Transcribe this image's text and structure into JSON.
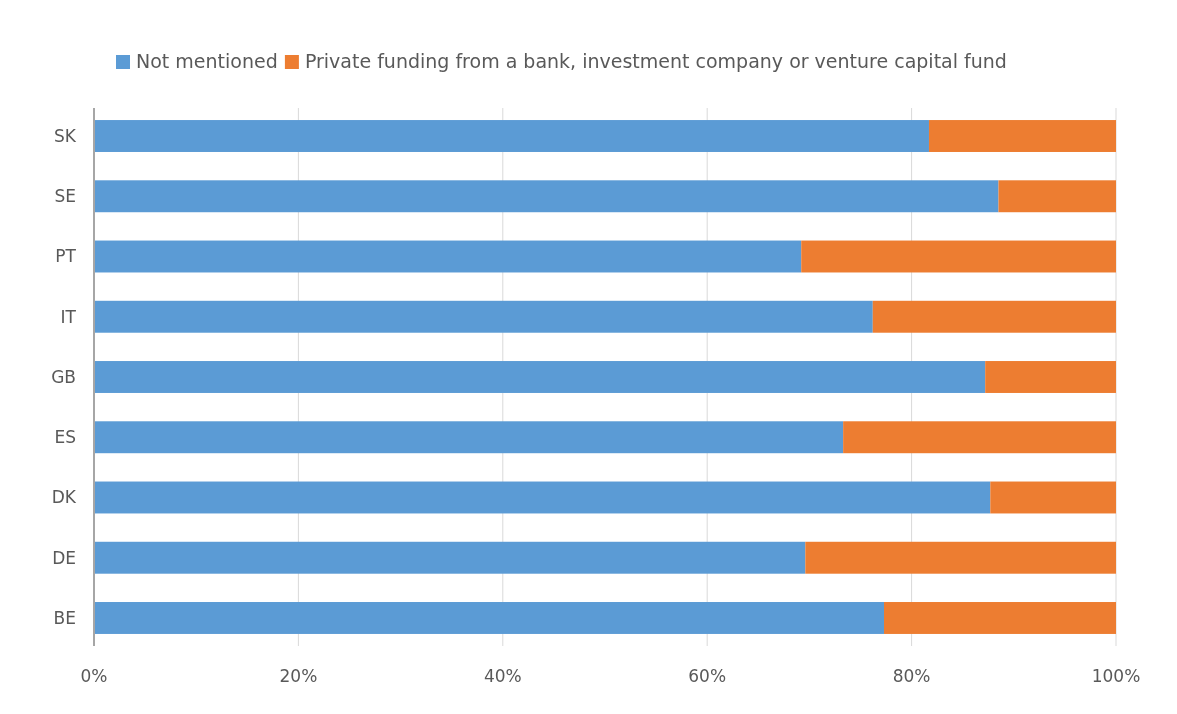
{
  "chart_data": {
    "type": "bar",
    "orientation": "horizontal",
    "stacked": true,
    "categories": [
      "SK",
      "SE",
      "PT",
      "IT",
      "GB",
      "ES",
      "DK",
      "DE",
      "BE"
    ],
    "series": [
      {
        "name": "Not mentioned",
        "color": "#5b9bd5",
        "values": [
          81.7,
          88.5,
          69.2,
          76.2,
          87.2,
          73.3,
          87.7,
          69.6,
          77.3
        ]
      },
      {
        "name": "Private funding from a bank, investment company or venture capital fund",
        "color": "#ed7d31",
        "values": [
          18.3,
          11.5,
          30.8,
          23.8,
          12.8,
          26.7,
          12.3,
          30.4,
          22.7
        ]
      }
    ],
    "xlim": [
      0,
      100
    ],
    "xticks": [
      {
        "value": 0,
        "label": "0%"
      },
      {
        "value": 20,
        "label": "20%"
      },
      {
        "value": 40,
        "label": "40%"
      },
      {
        "value": 60,
        "label": "60%"
      },
      {
        "value": 80,
        "label": "80%"
      },
      {
        "value": 100,
        "label": "100%"
      }
    ],
    "grid": "x",
    "legend": "top"
  }
}
